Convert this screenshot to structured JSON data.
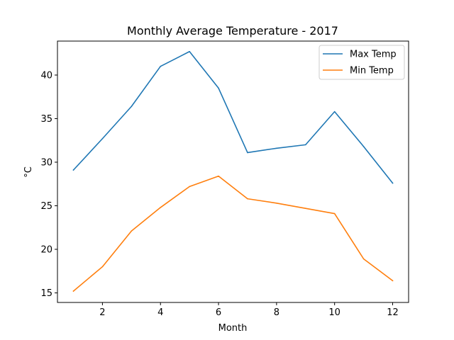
{
  "chart_data": {
    "type": "line",
    "title": "Monthly Average Temperature - 2017",
    "xlabel": "Month",
    "ylabel": "°C",
    "x": [
      1,
      2,
      3,
      4,
      5,
      6,
      7,
      8,
      9,
      10,
      11,
      12
    ],
    "xlim": [
      0.45,
      12.55
    ],
    "ylim": [
      13.9,
      43.9
    ],
    "xticks": [
      2,
      4,
      6,
      8,
      10,
      12
    ],
    "yticks": [
      15,
      20,
      25,
      30,
      35,
      40
    ],
    "grid": false,
    "legend_position": "top-right",
    "series": [
      {
        "name": "Max Temp",
        "color": "#1f77b4",
        "values": [
          29.1,
          32.7,
          36.4,
          41.0,
          42.7,
          38.5,
          31.1,
          31.6,
          32.0,
          35.8,
          31.8,
          27.6
        ]
      },
      {
        "name": "Min Temp",
        "color": "#ff7f0e",
        "values": [
          15.2,
          18.0,
          22.1,
          24.8,
          27.2,
          28.4,
          25.8,
          25.3,
          24.7,
          24.1,
          18.9,
          16.4
        ]
      }
    ]
  }
}
